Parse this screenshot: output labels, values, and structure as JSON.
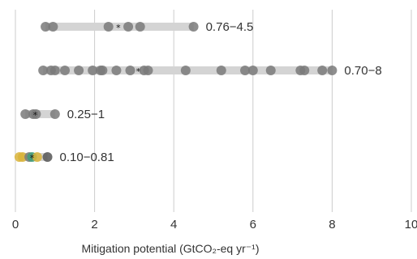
{
  "chart_data": {
    "type": "scatter",
    "title": "",
    "xlabel": "Mitigation potential (GtCO₂-eq yr⁻¹)",
    "ylabel": "",
    "xlim": [
      0,
      10
    ],
    "x_ticks": [
      "0",
      "2",
      "4",
      "6",
      "8",
      "10"
    ],
    "grid": "vertical",
    "rows": [
      {
        "range_label": "0.76−4.5",
        "range": [
          0.76,
          4.5
        ],
        "median": 2.6,
        "points": [
          0.76,
          0.95,
          2.35,
          2.85,
          3.15,
          4.5
        ],
        "point_color": "#7a7a7a"
      },
      {
        "range_label": "0.70−8",
        "range": [
          0.7,
          8
        ],
        "median": 3.1,
        "points": [
          0.7,
          0.9,
          1.0,
          1.25,
          1.6,
          1.95,
          2.15,
          2.2,
          2.55,
          2.9,
          3.25,
          3.35,
          4.3,
          5.2,
          5.8,
          6.0,
          6.45,
          7.2,
          7.3,
          7.75,
          8.0
        ],
        "point_color": "#7a7a7a"
      },
      {
        "range_label": "0.25−1",
        "range": [
          0.25,
          1
        ],
        "median": 0.5,
        "points": [
          0.25,
          0.45,
          0.52,
          1.0
        ],
        "point_color": "#7a7a7a"
      },
      {
        "range_label": "0.10−0.81",
        "range": [
          0.1,
          0.81
        ],
        "median": 0.42,
        "points": [
          {
            "x": 0.1,
            "color": "#d9b43a"
          },
          {
            "x": 0.18,
            "color": "#d9b43a"
          },
          {
            "x": 0.35,
            "color": "#7a7a7a"
          },
          {
            "x": 0.42,
            "color": "#3f9e7a"
          },
          {
            "x": 0.55,
            "color": "#d9b43a"
          },
          {
            "x": 0.81,
            "color": "#555555"
          }
        ],
        "point_color": "#7a7a7a"
      }
    ],
    "colors": {
      "range_bar": "#d4d4d4",
      "grid": "#cccccc",
      "median_marker": "#111111"
    }
  }
}
